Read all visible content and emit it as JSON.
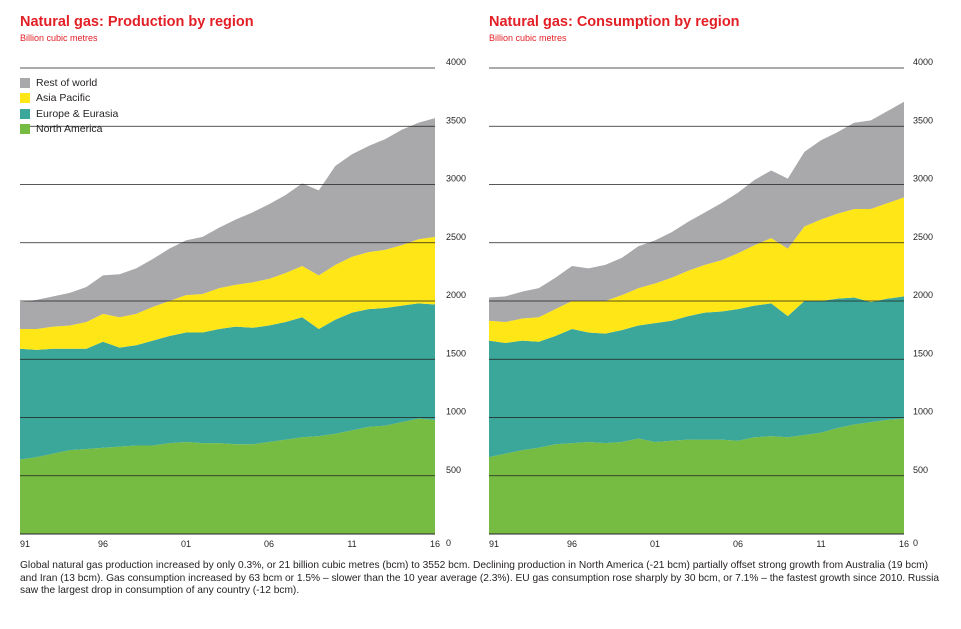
{
  "chart_data": [
    {
      "type": "area",
      "stacked": true,
      "title": "Natural gas: Production by region",
      "subtitle": "Billion cubic metres",
      "x": [
        1991,
        1992,
        1993,
        1994,
        1995,
        1996,
        1997,
        1998,
        1999,
        2000,
        2001,
        2002,
        2003,
        2004,
        2005,
        2006,
        2007,
        2008,
        2009,
        2010,
        2011,
        2012,
        2013,
        2014,
        2015,
        2016
      ],
      "x_tick_labels": [
        "91",
        "96",
        "01",
        "06",
        "11",
        "16"
      ],
      "ylim": [
        0,
        4000
      ],
      "y_ticks": [
        0,
        500,
        1000,
        1500,
        2000,
        2500,
        3000,
        3500,
        4000
      ],
      "legend_position": "top-left",
      "series": [
        {
          "name": "North America",
          "color": "#76bc43",
          "values": [
            640,
            660,
            690,
            720,
            730,
            740,
            750,
            760,
            760,
            780,
            790,
            780,
            780,
            770,
            770,
            790,
            810,
            830,
            840,
            860,
            890,
            920,
            930,
            960,
            990,
            980
          ]
        },
        {
          "name": "Europe & Eurasia",
          "color": "#3aa79a",
          "values": [
            950,
            920,
            900,
            870,
            860,
            910,
            850,
            860,
            900,
            920,
            940,
            950,
            980,
            1010,
            1000,
            1000,
            1010,
            1030,
            920,
            980,
            1010,
            1010,
            1010,
            1000,
            990,
            990
          ]
        },
        {
          "name": "Asia Pacific",
          "color": "#ffe617",
          "values": [
            170,
            180,
            190,
            200,
            230,
            240,
            260,
            270,
            290,
            300,
            320,
            330,
            350,
            360,
            390,
            400,
            420,
            440,
            460,
            470,
            480,
            490,
            500,
            520,
            550,
            580
          ]
        },
        {
          "name": "Rest of world",
          "color": "#a9a8aa",
          "values": [
            230,
            250,
            260,
            280,
            300,
            330,
            370,
            390,
            410,
            450,
            470,
            490,
            520,
            560,
            600,
            640,
            670,
            710,
            730,
            850,
            880,
            910,
            950,
            990,
            1000,
            1020
          ]
        }
      ]
    },
    {
      "type": "area",
      "stacked": true,
      "title": "Natural gas: Consumption by region",
      "subtitle": "Billion cubic metres",
      "x": [
        1991,
        1992,
        1993,
        1994,
        1995,
        1996,
        1997,
        1998,
        1999,
        2000,
        2001,
        2002,
        2003,
        2004,
        2005,
        2006,
        2007,
        2008,
        2009,
        2010,
        2011,
        2012,
        2013,
        2014,
        2015,
        2016
      ],
      "x_tick_labels": [
        "91",
        "96",
        "01",
        "06",
        "11",
        "16"
      ],
      "ylim": [
        0,
        4000
      ],
      "y_ticks": [
        0,
        500,
        1000,
        1500,
        2000,
        2500,
        3000,
        3500,
        4000
      ],
      "series": [
        {
          "name": "North America",
          "color": "#76bc43",
          "values": [
            660,
            690,
            720,
            740,
            770,
            780,
            790,
            780,
            790,
            820,
            790,
            800,
            810,
            810,
            810,
            800,
            830,
            840,
            830,
            850,
            870,
            910,
            940,
            960,
            980,
            990
          ]
        },
        {
          "name": "Europe & Eurasia",
          "color": "#3aa79a",
          "values": [
            1000,
            950,
            940,
            910,
            930,
            980,
            940,
            940,
            960,
            970,
            1020,
            1030,
            1060,
            1090,
            1100,
            1130,
            1130,
            1140,
            1040,
            1150,
            1130,
            1110,
            1090,
            1030,
            1040,
            1050
          ]
        },
        {
          "name": "Asia Pacific",
          "color": "#ffe617",
          "values": [
            170,
            180,
            190,
            210,
            230,
            240,
            270,
            280,
            300,
            320,
            340,
            370,
            390,
            410,
            440,
            480,
            520,
            560,
            580,
            640,
            700,
            730,
            760,
            800,
            820,
            850
          ]
        },
        {
          "name": "Rest of world",
          "color": "#a9a8aa",
          "values": [
            200,
            220,
            230,
            250,
            270,
            300,
            280,
            310,
            320,
            360,
            370,
            390,
            420,
            450,
            490,
            520,
            560,
            580,
            600,
            640,
            680,
            700,
            740,
            760,
            790,
            820
          ]
        }
      ]
    }
  ],
  "caption": "Global natural gas production increased by only 0.3%, or 21 billion cubic metres (bcm) to 3552 bcm. Declining production in North America (-21 bcm) partially offset strong growth from Australia (19 bcm) and Iran (13 bcm). Gas consumption increased by 63 bcm or 1.5% – slower than the 10 year average (2.3%). EU gas consumption rose sharply by 30 bcm, or 7.1% – the fastest growth since 2010. Russia saw the largest drop in consumption of any country (-12 bcm)."
}
